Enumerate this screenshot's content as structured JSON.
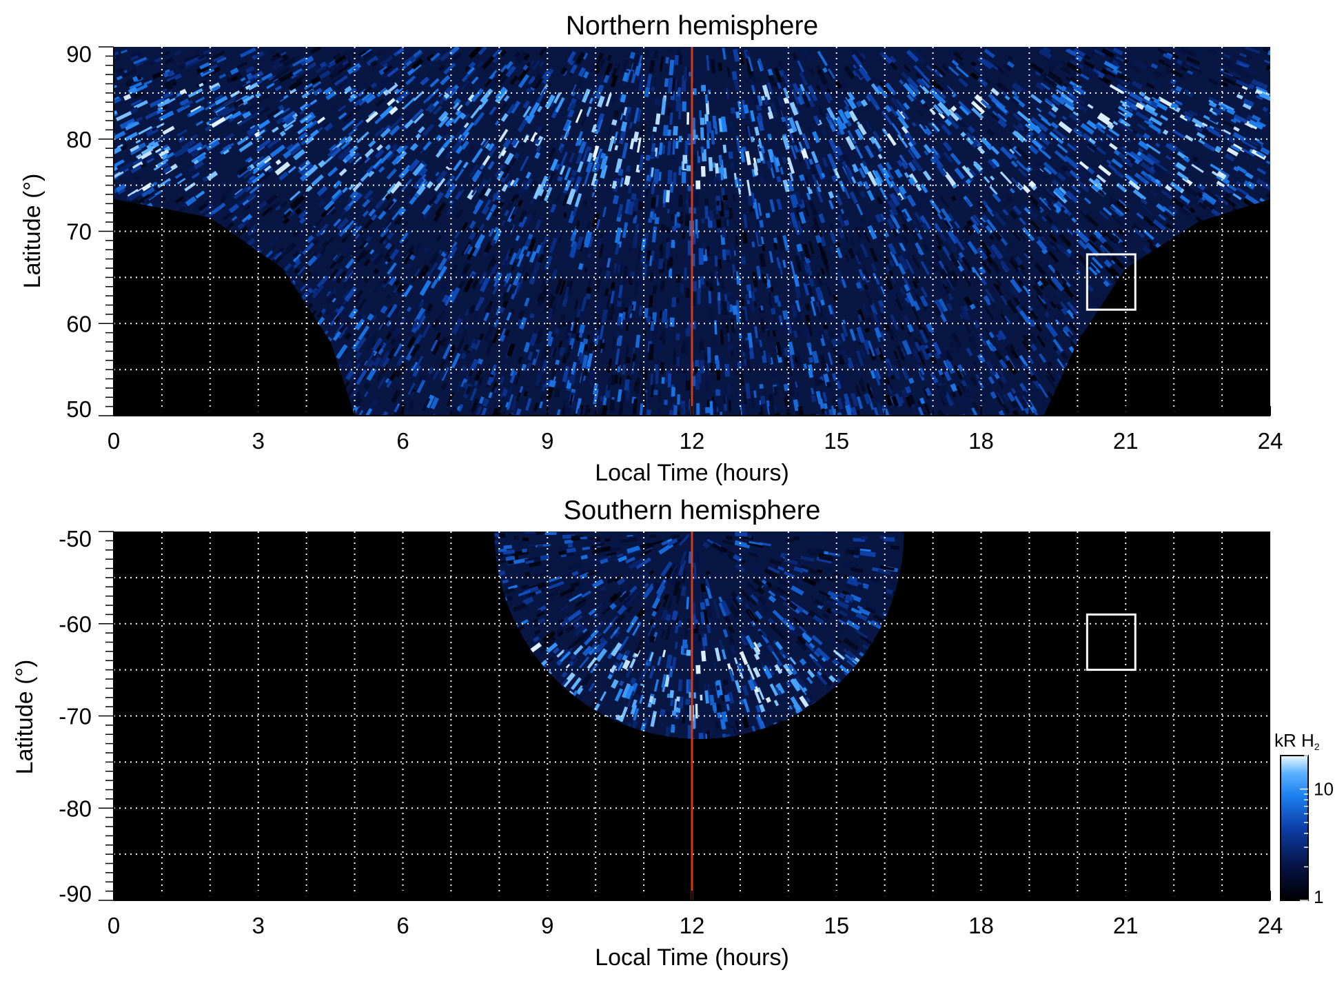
{
  "colors": {
    "background": "#000000",
    "emission_dim": "#0a1a4d",
    "emission_mid": "#1f6fe0",
    "emission_bright": "#dff1ff",
    "noon_line": "#d23a14",
    "grid": "#ffffff",
    "box": "#ffffff"
  },
  "chart_data": [
    {
      "type": "heatmap",
      "title": "Northern hemisphere",
      "xlabel": "Local Time (hours)",
      "ylabel": "Latitude (°)",
      "xlim": [
        0,
        24
      ],
      "ylim": [
        50,
        90
      ],
      "xticks": [
        0,
        3,
        6,
        9,
        12,
        15,
        18,
        21,
        24
      ],
      "yticks": [
        50,
        60,
        70,
        80,
        90
      ],
      "grid": true,
      "noon_line_x": 12,
      "highlight_box": {
        "lt": [
          20.2,
          21.2
        ],
        "lat": [
          61.5,
          67.5
        ]
      },
      "coverage": {
        "equatorward_edge_lat_at_lt": [
          [
            0,
            73.5
          ],
          [
            2,
            71.5
          ],
          [
            3.5,
            66
          ],
          [
            4.5,
            58
          ],
          [
            5,
            50
          ],
          [
            19.3,
            50
          ],
          [
            20,
            58
          ],
          [
            21,
            66
          ],
          [
            22.5,
            71
          ],
          [
            24,
            73.5
          ]
        ]
      },
      "bright_band_lat": [
        74,
        86
      ]
    },
    {
      "type": "heatmap",
      "title": "Southern hemisphere",
      "xlabel": "Local Time (hours)",
      "ylabel": "Latitude (°)",
      "xlim": [
        0,
        24
      ],
      "ylim": [
        -90,
        -50
      ],
      "xticks": [
        0,
        3,
        6,
        9,
        12,
        15,
        18,
        21,
        24
      ],
      "yticks": [
        -90,
        -80,
        -70,
        -60,
        -50
      ],
      "grid": true,
      "noon_line_x": 12,
      "highlight_box": {
        "lt": [
          20.2,
          21.2
        ],
        "lat": [
          -65,
          -59
        ]
      },
      "coverage": {
        "lt_range_at_top": [
          7.9,
          16.4
        ],
        "poleward_edge_lat": -72.5
      },
      "bright_band_lat": [
        -70,
        -62
      ]
    }
  ],
  "colorbar": {
    "title": "kR H",
    "title_subscript": "2",
    "scale": "log",
    "range": [
      1,
      20
    ],
    "tick_labels": [
      "1",
      "10"
    ],
    "tick_values": [
      1,
      10
    ]
  }
}
